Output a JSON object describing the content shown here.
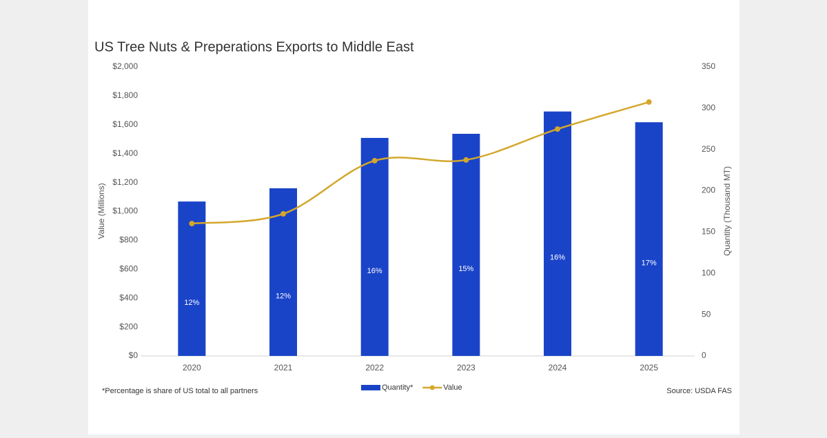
{
  "chart_data": {
    "type": "bar-line",
    "title": "US Tree Nuts & Preperations Exports to Middle East",
    "y_label": "Value (Millions)",
    "y2_label": "Quantity (Thousand MT)",
    "categories": [
      "2020",
      "2021",
      "2022",
      "2023",
      "2024",
      "2025"
    ],
    "series": [
      {
        "name": "Quantity*",
        "type": "bar",
        "axis": "y2",
        "color": "#1a44c8",
        "values": [
          187,
          203,
          264,
          269,
          296,
          283
        ],
        "share_labels": [
          "12%",
          "12%",
          "16%",
          "15%",
          "16%",
          "17%"
        ]
      },
      {
        "name": "Value",
        "type": "line",
        "axis": "y",
        "color": "#d4a72c",
        "values": [
          916,
          983,
          1351,
          1356,
          1570,
          1757
        ]
      }
    ],
    "ylim": [
      0,
      2000
    ],
    "yticks": [
      {
        "value": 0,
        "label": "$0"
      },
      {
        "value": 200,
        "label": "$200"
      },
      {
        "value": 400,
        "label": "$400"
      },
      {
        "value": 600,
        "label": "$600"
      },
      {
        "value": 800,
        "label": "$800"
      },
      {
        "value": 1000,
        "label": "$1,000"
      },
      {
        "value": 1200,
        "label": "$1,200"
      },
      {
        "value": 1400,
        "label": "$1,400"
      },
      {
        "value": 1600,
        "label": "$1,600"
      },
      {
        "value": 1800,
        "label": "$1,800"
      },
      {
        "value": 2000,
        "label": "$2,000"
      }
    ],
    "y2lim": [
      0,
      350
    ],
    "y2ticks": [
      0,
      50,
      100,
      150,
      200,
      250,
      300,
      350
    ],
    "footnote": "*Percentage is share of US total to all partners",
    "source": "Source: USDA FAS"
  }
}
